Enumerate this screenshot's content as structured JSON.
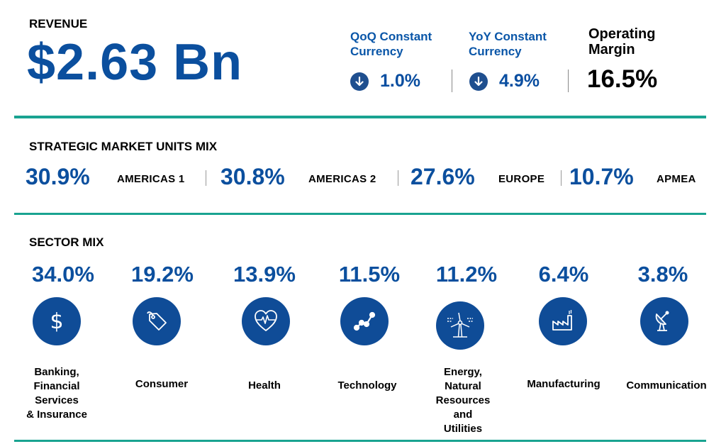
{
  "revenue": {
    "label": "REVENUE",
    "value": "$2.63 Bn"
  },
  "kpis": [
    {
      "title_line1": "QoQ Constant",
      "title_line2": "Currency",
      "value": "1.0%",
      "direction": "down",
      "icon": "arrow-down-circle-icon"
    },
    {
      "title_line1": "YoY Constant",
      "title_line2": "Currency",
      "value": "4.9%",
      "direction": "down",
      "icon": "arrow-down-circle-icon"
    }
  ],
  "operating_margin": {
    "title_line1": "Operating",
    "title_line2": "Margin",
    "value": "16.5%"
  },
  "smu": {
    "label": "STRATEGIC MARKET UNITS MIX",
    "items": [
      {
        "pct": "30.9%",
        "name": "AMERICAS 1"
      },
      {
        "pct": "30.8%",
        "name": "AMERICAS 2"
      },
      {
        "pct": "27.6%",
        "name": "EUROPE"
      },
      {
        "pct": "10.7%",
        "name": "APMEA"
      }
    ]
  },
  "sector": {
    "label": "SECTOR MIX",
    "items": [
      {
        "pct": "34.0%",
        "icon": "dollar-icon",
        "lines": [
          "Banking,",
          "Financial",
          "Services",
          "& Insurance"
        ]
      },
      {
        "pct": "19.2%",
        "icon": "price-tag-icon",
        "lines": [
          "Consumer"
        ]
      },
      {
        "pct": "13.9%",
        "icon": "heart-pulse-icon",
        "lines": [
          "Health"
        ]
      },
      {
        "pct": "11.5%",
        "icon": "line-chart-icon",
        "lines": [
          "Technology"
        ]
      },
      {
        "pct": "11.2%",
        "icon": "wind-turbine-icon",
        "lines": [
          "Energy,",
          "Natural",
          "Resources",
          "and",
          "Utilities"
        ]
      },
      {
        "pct": "6.4%",
        "icon": "factory-icon",
        "lines": [
          "Manufacturing"
        ]
      },
      {
        "pct": "3.8%",
        "icon": "satellite-dish-icon",
        "lines": [
          "Communication"
        ]
      }
    ]
  },
  "colors": {
    "brand_blue": "#0b4f9e",
    "icon_blue": "#0f4c97",
    "rule_teal": "#19a391"
  }
}
